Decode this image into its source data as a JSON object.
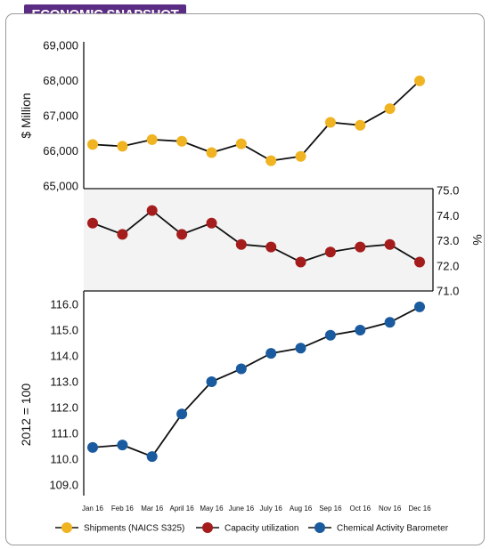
{
  "header": {
    "title": "ECONOMIC SNAPSHOT",
    "color": "#5b2c83"
  },
  "chart_data": {
    "type": "line",
    "x": [
      "Jan 16",
      "Feb 16",
      "Mar 16",
      "April 16",
      "May 16",
      "June 16",
      "July 16",
      "Aug 16",
      "Sep 16",
      "Oct 16",
      "Nov 16",
      "Dec 16"
    ],
    "panels": [
      {
        "series": [
          {
            "name": "Shipments (NAICS S325)",
            "color": "#f0b321",
            "values": [
              66180,
              66130,
              66320,
              66270,
              65950,
              66200,
              65720,
              65840,
              66810,
              66730,
              67200,
              67990
            ]
          }
        ],
        "ylabel": "$ Million",
        "ylim": [
          65000,
          69000
        ],
        "yticks": [
          "65,000",
          "66,000",
          "67,000",
          "68,000",
          "69,000"
        ],
        "ytick_values": [
          65000,
          66000,
          67000,
          68000,
          69000
        ],
        "axis_side": "left"
      },
      {
        "series": [
          {
            "name": "Capacity utilization",
            "color": "#a51c1c",
            "values": [
              73.7,
              73.25,
              74.2,
              73.25,
              73.7,
              72.85,
              72.75,
              72.15,
              72.55,
              72.75,
              72.85,
              72.15
            ]
          }
        ],
        "ylabel": "%",
        "ylim": [
          71.0,
          75.0
        ],
        "yticks": [
          "71.0",
          "72.0",
          "73.0",
          "74.0",
          "75.0"
        ],
        "ytick_values": [
          71,
          72,
          73,
          74,
          75
        ],
        "axis_side": "right"
      },
      {
        "series": [
          {
            "name": "Chemical Activity Barometer",
            "color": "#1a5a9e",
            "values": [
              110.45,
              110.55,
              110.1,
              111.75,
              113.0,
              113.5,
              114.1,
              114.3,
              114.8,
              115.0,
              115.3,
              115.9
            ]
          }
        ],
        "ylabel": "2012 = 100",
        "ylim": [
          109.0,
          116.0
        ],
        "yticks": [
          "109.0",
          "110.0",
          "111.0",
          "112.0",
          "113.0",
          "114.0",
          "115.0",
          "116.0"
        ],
        "ytick_values": [
          109,
          110,
          111,
          112,
          113,
          114,
          115,
          116
        ],
        "axis_side": "left"
      }
    ],
    "legend": [
      {
        "label": "Shipments (NAICS S325)",
        "color": "#f0b321"
      },
      {
        "label": "Capacity utilization",
        "color": "#a51c1c"
      },
      {
        "label": "Chemical Activity Barometer",
        "color": "#1a5a9e"
      }
    ],
    "legend_position": "bottom",
    "grid": false
  }
}
